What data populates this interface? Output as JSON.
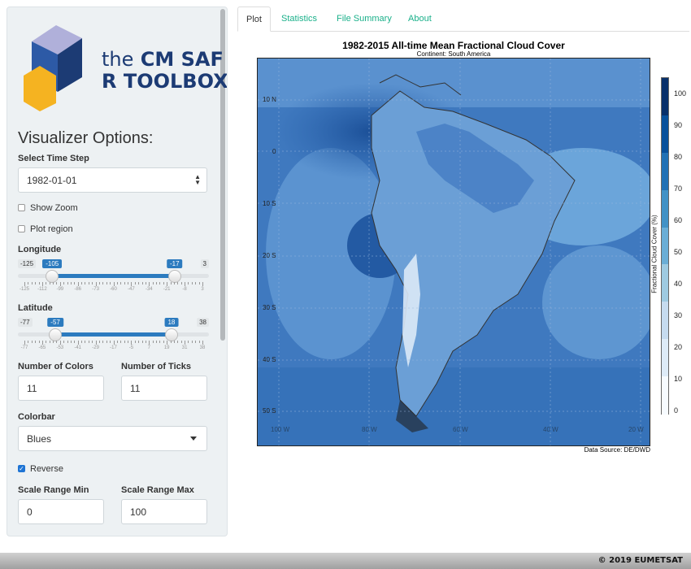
{
  "tabs": [
    {
      "label": "Plot",
      "active": true
    },
    {
      "label": "Statistics",
      "active": false
    },
    {
      "label": "File Summary",
      "active": false
    },
    {
      "label": "About",
      "active": false
    }
  ],
  "logo": {
    "line1_prefix": "the",
    "line1_main": "CM SAF",
    "line2": "R TOOLBOX"
  },
  "sidebar": {
    "title": "Visualizer Options:",
    "time_step": {
      "label": "Select Time Step",
      "value": "1982-01-01"
    },
    "show_zoom": {
      "label": "Show Zoom",
      "checked": false
    },
    "plot_region": {
      "label": "Plot region",
      "checked": false
    },
    "longitude": {
      "label": "Longitude",
      "min": "-125",
      "max": "3",
      "from": "-105",
      "to": "-17",
      "from_value": -105,
      "to_value": -17,
      "range": [
        -125,
        3
      ],
      "ticks": [
        "-125",
        "-112",
        "-99",
        "-86",
        "-73",
        "-60",
        "-47",
        "-34",
        "-21",
        "-8",
        "3"
      ]
    },
    "latitude": {
      "label": "Latitude",
      "min": "-77",
      "max": "38",
      "from": "-57",
      "to": "18",
      "from_value": -57,
      "to_value": 18,
      "range": [
        -77,
        38
      ],
      "ticks": [
        "-77",
        "-65",
        "-53",
        "-41",
        "-29",
        "-17",
        "-5",
        "7",
        "19",
        "31",
        "38"
      ]
    },
    "num_colors": {
      "label": "Number of Colors",
      "value": "11"
    },
    "num_ticks": {
      "label": "Number of Ticks",
      "value": "11"
    },
    "colorbar": {
      "label": "Colorbar",
      "value": "Blues"
    },
    "reverse": {
      "label": "Reverse",
      "checked": true
    },
    "scale_min": {
      "label": "Scale Range Min",
      "value": "0"
    },
    "scale_max": {
      "label": "Scale Range Max",
      "value": "100"
    }
  },
  "plot": {
    "title": "1982-2015 All-time Mean Fractional Cloud Cover",
    "subtitle": "Continent: South America",
    "lat_labels": [
      "10 N",
      "0",
      "10 S",
      "20 S",
      "30 S",
      "40 S",
      "50 S"
    ],
    "lon_labels": [
      "100 W",
      "80 W",
      "60 W",
      "40 W",
      "20 W"
    ],
    "data_source": "Data Source: DE/DWD",
    "colorbar_title": "Fractional Cloud Cover (%)",
    "colorbar_labels": [
      "100",
      "90",
      "80",
      "70",
      "60",
      "50",
      "40",
      "30",
      "20",
      "10",
      "0"
    ],
    "colors": [
      "#08306b",
      "#08519c",
      "#2171b5",
      "#4292c6",
      "#6baed6",
      "#9ecae1",
      "#c6dbef",
      "#deebf7",
      "#f7fbff"
    ]
  },
  "footer": {
    "text": "© 2019 EUMETSAT"
  }
}
